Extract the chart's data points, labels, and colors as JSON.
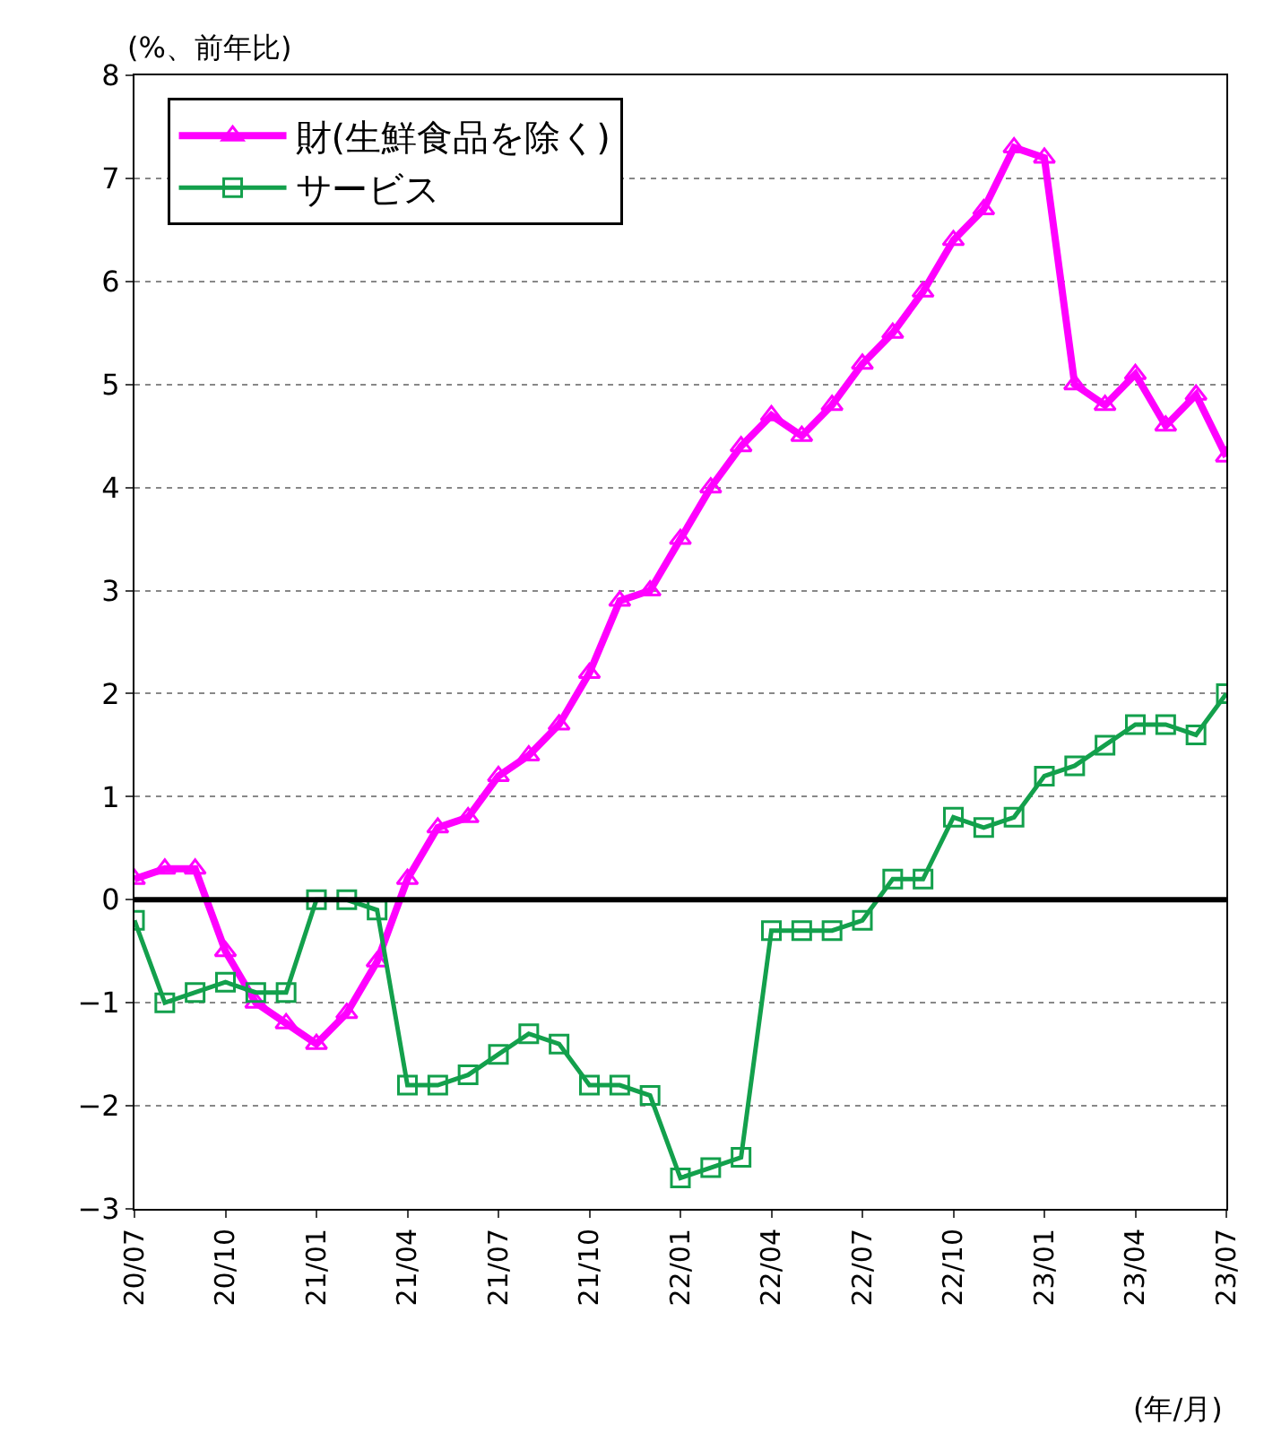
{
  "chart_data": {
    "type": "line",
    "ylabel": "(%、前年比)",
    "xlabel": "(年/月)",
    "categories": [
      "20/07",
      null,
      null,
      "20/10",
      null,
      null,
      "21/01",
      null,
      null,
      "21/04",
      null,
      null,
      "21/07",
      null,
      null,
      "21/10",
      null,
      null,
      "22/01",
      null,
      null,
      "22/04",
      null,
      null,
      "22/07",
      null,
      null,
      "22/10",
      null,
      null,
      "23/01",
      null,
      null,
      "23/04",
      null,
      null,
      "23/07"
    ],
    "series": [
      {
        "name": "財(生鮮食品を除く)",
        "color": "#ff00ff",
        "marker": "triangle",
        "values": [
          0.2,
          0.3,
          0.3,
          -0.5,
          -1.0,
          -1.2,
          -1.4,
          -1.1,
          -0.6,
          0.2,
          0.7,
          0.8,
          1.2,
          1.4,
          1.7,
          2.2,
          2.9,
          3.0,
          3.5,
          4.0,
          4.4,
          4.7,
          4.5,
          4.8,
          5.2,
          5.5,
          5.9,
          6.4,
          6.7,
          7.3,
          7.2,
          5.0,
          4.8,
          5.1,
          4.6,
          4.9,
          4.3
        ]
      },
      {
        "name": "サービス",
        "color": "#13a04c",
        "marker": "square",
        "values": [
          -0.2,
          -1.0,
          -0.9,
          -0.8,
          -0.9,
          -0.9,
          0.0,
          0.0,
          -0.1,
          -1.8,
          -1.8,
          -1.7,
          -1.5,
          -1.3,
          -1.4,
          -1.8,
          -1.8,
          -1.9,
          -2.7,
          -2.6,
          -2.5,
          -0.3,
          -0.3,
          -0.3,
          -0.2,
          0.2,
          0.2,
          0.8,
          0.7,
          0.8,
          1.2,
          1.3,
          1.5,
          1.7,
          1.7,
          1.6,
          2.0
        ]
      }
    ],
    "ylim": [
      -3,
      8
    ],
    "yticks": [
      -3,
      -2,
      -1,
      0,
      1,
      2,
      3,
      4,
      5,
      6,
      7,
      8
    ],
    "ref_lines": [
      {
        "axis": "y",
        "value": 0,
        "color": "#000000"
      }
    ],
    "grid": "y",
    "legend": "top left",
    "line_style": "solid"
  }
}
